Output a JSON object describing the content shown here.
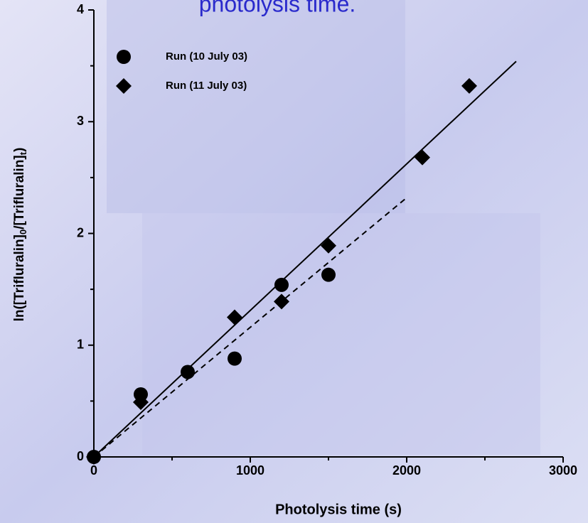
{
  "chart_data": {
    "type": "scatter",
    "title": "photolysis time.",
    "x_label": "Photolysis time (s)",
    "y_label_parts": [
      "ln([Trifluralin]",
      "0",
      "/[Trifluralin]",
      "t",
      ")"
    ],
    "xlim": [
      0,
      3000
    ],
    "ylim": [
      0,
      4
    ],
    "xticks": [
      0,
      1000,
      2000,
      3000
    ],
    "yticks": [
      0,
      1,
      2,
      3,
      4
    ],
    "xminorticks": [
      500,
      1500,
      2500
    ],
    "yminorticks": [
      0.5,
      1.5,
      2.5,
      3.5
    ],
    "series": [
      {
        "name": "Run (10 July 03)",
        "marker": "circle",
        "color": "#000000",
        "x": [
          0,
          300,
          600,
          900,
          1200,
          1500
        ],
        "values": [
          0,
          0.56,
          0.76,
          0.88,
          1.54,
          1.63
        ]
      },
      {
        "name": "Run (11 July 03)",
        "marker": "diamond",
        "color": "#000000",
        "x": [
          0,
          300,
          900,
          1200,
          1500,
          2100,
          2400
        ],
        "values": [
          0,
          0.49,
          1.25,
          1.39,
          1.89,
          2.68,
          3.32
        ]
      }
    ],
    "fit_lines": [
      {
        "style": "solid",
        "x": [
          0,
          2700
        ],
        "values": [
          0,
          3.54
        ]
      },
      {
        "style": "dashed",
        "x": [
          0,
          2000
        ],
        "values": [
          0,
          2.32
        ]
      }
    ]
  }
}
